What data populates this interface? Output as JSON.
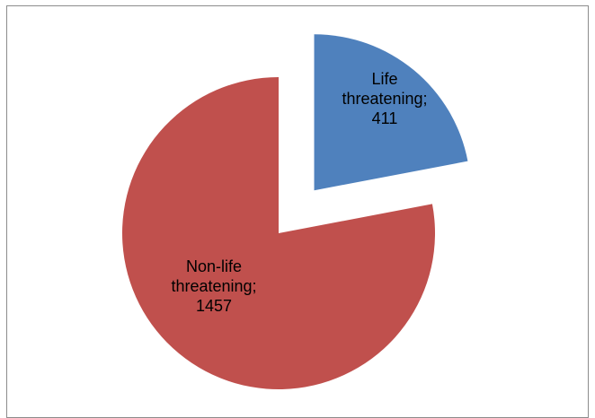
{
  "chart_data": {
    "type": "pie",
    "title": "",
    "legend": "none",
    "exploded": true,
    "slices": [
      {
        "label_lines": [
          "Life",
          "threatening;",
          "411"
        ],
        "category": "Life threatening",
        "value": 411,
        "color": "#4f81bd"
      },
      {
        "label_lines": [
          "Non-life",
          "threatening;",
          "1457"
        ],
        "category": "Non-life threatening",
        "value": 1457,
        "color": "#c0504d"
      }
    ]
  }
}
